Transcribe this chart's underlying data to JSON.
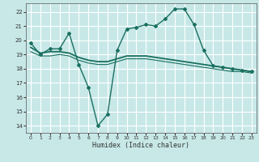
{
  "xlabel": "Humidex (Indice chaleur)",
  "background_color": "#c8e8e8",
  "grid_color": "#ffffff",
  "line_color": "#1a7060",
  "xlim": [
    -0.5,
    23.5
  ],
  "ylim": [
    13.5,
    22.6
  ],
  "yticks": [
    14,
    15,
    16,
    17,
    18,
    19,
    20,
    21,
    22
  ],
  "xticks": [
    0,
    1,
    2,
    3,
    4,
    5,
    6,
    7,
    8,
    9,
    10,
    11,
    12,
    13,
    14,
    15,
    16,
    17,
    18,
    19,
    20,
    21,
    22,
    23
  ],
  "series": [
    {
      "x": [
        0,
        1,
        2,
        3,
        4,
        5,
        6,
        7,
        8,
        9,
        10,
        11,
        12,
        13,
        14,
        15,
        16,
        17,
        18,
        19,
        20,
        21,
        22,
        23
      ],
      "y": [
        19.8,
        19.0,
        19.4,
        19.4,
        20.5,
        18.3,
        16.7,
        14.0,
        14.8,
        19.3,
        20.8,
        20.9,
        21.1,
        21.0,
        21.5,
        22.2,
        22.2,
        21.1,
        19.3,
        18.2,
        18.1,
        18.0,
        17.9,
        17.8
      ],
      "marker": "D",
      "markersize": 2.0,
      "linewidth": 1.0
    },
    {
      "x": [
        0,
        1,
        2,
        3,
        4,
        5,
        6,
        7,
        8,
        9,
        10,
        11,
        12,
        13,
        14,
        15,
        16,
        17,
        18,
        19,
        20,
        21,
        22,
        23
      ],
      "y": [
        19.5,
        19.1,
        19.2,
        19.2,
        19.1,
        18.8,
        18.6,
        18.5,
        18.5,
        18.7,
        18.9,
        18.9,
        18.9,
        18.8,
        18.7,
        18.6,
        18.5,
        18.4,
        18.3,
        18.2,
        18.1,
        18.0,
        17.9,
        17.8
      ],
      "marker": null,
      "markersize": 0,
      "linewidth": 1.3
    },
    {
      "x": [
        0,
        1,
        2,
        3,
        4,
        5,
        6,
        7,
        8,
        9,
        10,
        11,
        12,
        13,
        14,
        15,
        16,
        17,
        18,
        19,
        20,
        21,
        22,
        23
      ],
      "y": [
        19.2,
        18.9,
        18.9,
        19.0,
        18.9,
        18.6,
        18.4,
        18.3,
        18.3,
        18.5,
        18.7,
        18.7,
        18.7,
        18.6,
        18.5,
        18.4,
        18.3,
        18.2,
        18.1,
        18.0,
        17.9,
        17.8,
        17.8,
        17.7
      ],
      "marker": null,
      "markersize": 0,
      "linewidth": 0.8
    }
  ]
}
